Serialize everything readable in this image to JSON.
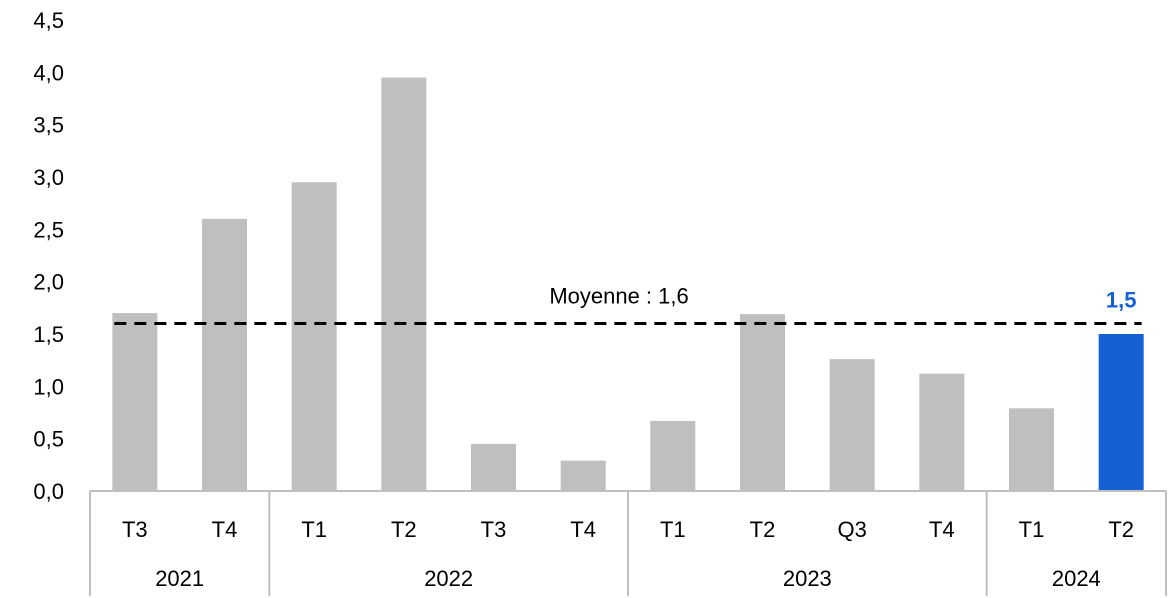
{
  "chart_data": {
    "type": "bar",
    "years": [
      {
        "label": "2021",
        "count": 2
      },
      {
        "label": "2022",
        "count": 4
      },
      {
        "label": "2023",
        "count": 4
      },
      {
        "label": "2024",
        "count": 2
      }
    ],
    "categories": [
      "T3",
      "T4",
      "T1",
      "T2",
      "T3",
      "T4",
      "T1",
      "T2",
      "Q3",
      "T4",
      "T1",
      "T2"
    ],
    "values": [
      1.7,
      2.6,
      2.95,
      3.95,
      0.45,
      0.29,
      0.67,
      1.69,
      1.26,
      1.12,
      0.79,
      1.5
    ],
    "highlight_index": 11,
    "highlight_label": "1,5",
    "average": {
      "value": 1.6,
      "label": "Moyenne : 1,6"
    },
    "ylim": [
      0,
      4.5
    ],
    "yticks": [
      "0,0",
      "0,5",
      "1,0",
      "1,5",
      "2,0",
      "2,5",
      "3,0",
      "3,5",
      "4,0",
      "4,5"
    ],
    "colors": {
      "bar": "#bfbfbf",
      "highlight": "#1560d4",
      "highlight_label": "#1560d4",
      "axis": "#bfbfbf",
      "average_line": "#000000"
    },
    "title": "",
    "xlabel": "",
    "ylabel": "",
    "grid": false,
    "legend": "none"
  }
}
